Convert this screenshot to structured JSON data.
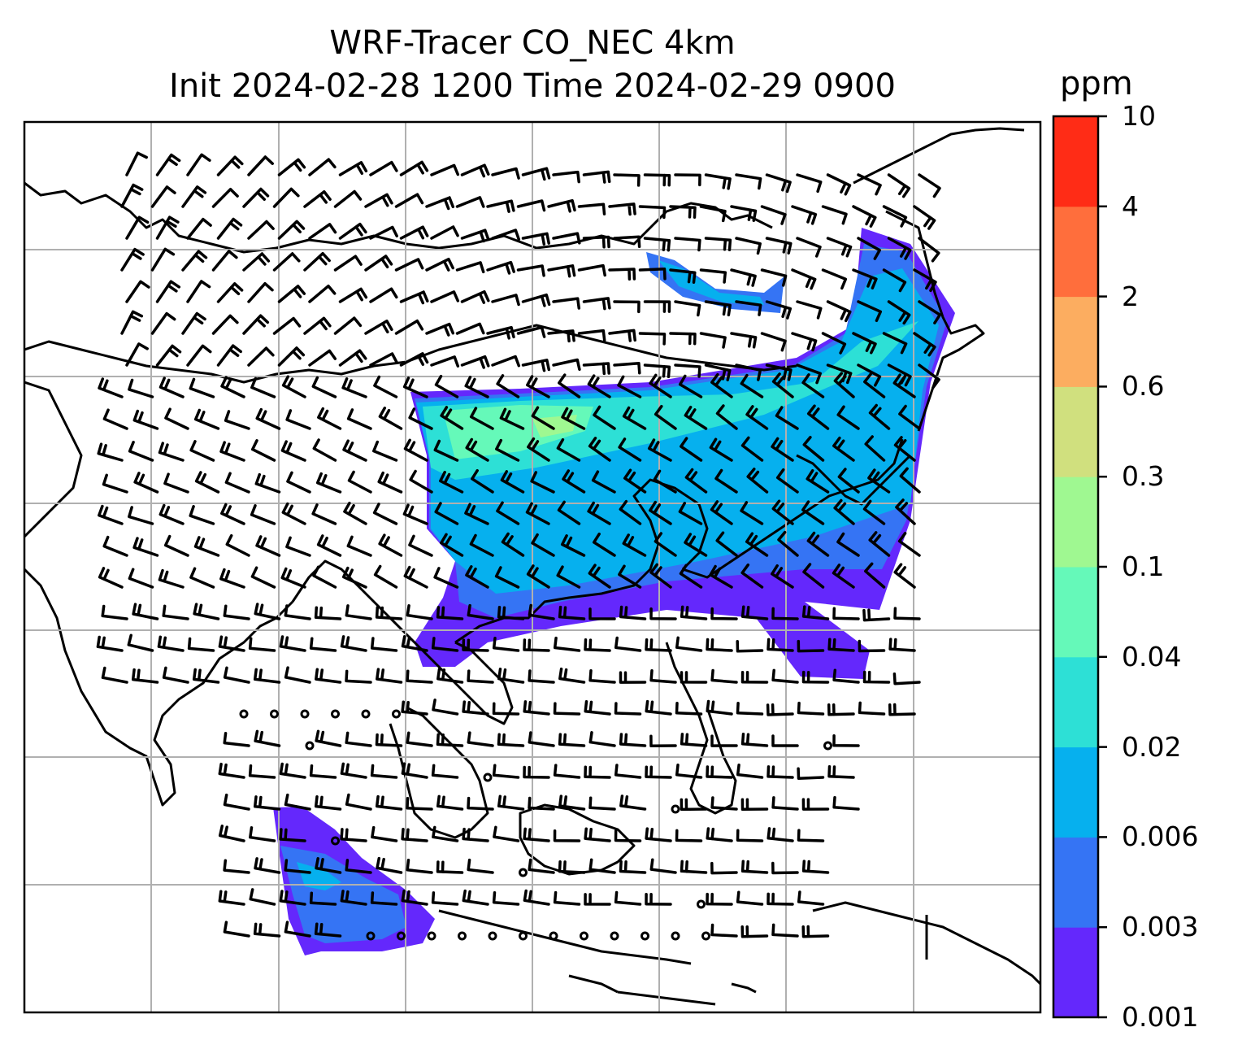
{
  "title_line1": "WRF-Tracer CO_NEC 4km",
  "title_line2": "Init 2024-02-28 1200 Time 2024-02-29 0900",
  "colorbar": {
    "unit": "ppm",
    "ticks": [
      "0.001",
      "0.003",
      "0.006",
      "0.02",
      "0.04",
      "0.1",
      "0.3",
      "0.6",
      "2",
      "4",
      "10"
    ],
    "colors": [
      "#6428fc",
      "#3574f4",
      "#06b0ee",
      "#2de0d6",
      "#65f9b9",
      "#9ff891",
      "#d0e07e",
      "#fcad60",
      "#ff6e3c",
      "#ff2c16"
    ]
  },
  "map": {
    "grid": "on",
    "coastlines": "black",
    "overlay": "wind barbs"
  }
}
